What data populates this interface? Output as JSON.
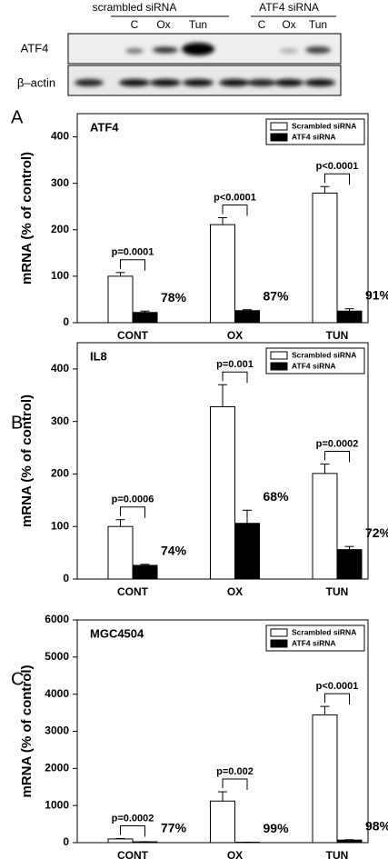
{
  "blot": {
    "group_labels": [
      "scrambled siRNA",
      "ATF4 siRNA"
    ],
    "lane_labels": [
      "C",
      "Ox",
      "Tun",
      "C",
      "Ox",
      "Tun"
    ],
    "row_labels": [
      "ATF4",
      "β–actin"
    ]
  },
  "chart_data": [
    {
      "type": "bar",
      "panel_label": "A",
      "title": "ATF4",
      "ylabel": "mRNA (% of control)",
      "categories": [
        "CONT",
        "OX",
        "TUN"
      ],
      "series": [
        {
          "name": "Scrambled siRNA",
          "color": "#ffffff",
          "values": [
            100,
            211,
            279
          ],
          "errors": [
            8,
            15,
            14
          ]
        },
        {
          "name": "ATF4 siRNA",
          "color": "#000000",
          "values": [
            22,
            26,
            25
          ],
          "errors": [
            3,
            2,
            5
          ]
        }
      ],
      "p_values": [
        "p=0.0001",
        "p<0.0001",
        "p<0.0001"
      ],
      "reduction_labels": [
        "78%",
        "87%",
        "91%"
      ],
      "ylim": [
        0,
        450
      ],
      "yticks": [
        0,
        100,
        200,
        300,
        400
      ],
      "legend": "upper-right"
    },
    {
      "type": "bar",
      "panel_label": "B",
      "title": "IL8",
      "ylabel": "mRNA (% of control)",
      "categories": [
        "CONT",
        "OX",
        "TUN"
      ],
      "series": [
        {
          "name": "Scrambled siRNA",
          "color": "#ffffff",
          "values": [
            100,
            328,
            201
          ],
          "errors": [
            13,
            42,
            18
          ]
        },
        {
          "name": "ATF4 siRNA",
          "color": "#000000",
          "values": [
            26,
            106,
            56
          ],
          "errors": [
            2,
            25,
            6
          ]
        }
      ],
      "p_values": [
        "p=0.0006",
        "p=0.001",
        "p=0.0002"
      ],
      "reduction_labels": [
        "74%",
        "68%",
        "72%"
      ],
      "ylim": [
        0,
        450
      ],
      "yticks": [
        0,
        100,
        200,
        300,
        400
      ],
      "legend": "upper-right"
    },
    {
      "type": "bar",
      "panel_label": "C",
      "title": "MGC4504",
      "ylabel": "mRNA (% of control)",
      "categories": [
        "CONT",
        "OX",
        "TUN"
      ],
      "series": [
        {
          "name": "Scrambled siRNA",
          "color": "#ffffff",
          "values": [
            100,
            1120,
            3440
          ],
          "errors": [
            10,
            250,
            230
          ]
        },
        {
          "name": "ATF4 siRNA",
          "color": "#000000",
          "values": [
            23,
            11,
            69
          ],
          "errors": [
            3,
            2,
            10
          ]
        }
      ],
      "p_values": [
        "p=0.0002",
        "p=0.002",
        "p<0.0001"
      ],
      "reduction_labels": [
        "77%",
        "99%",
        "98%"
      ],
      "ylim": [
        0,
        6000
      ],
      "yticks": [
        0,
        1000,
        2000,
        3000,
        4000,
        5000,
        6000
      ],
      "legend": "upper-right"
    }
  ]
}
